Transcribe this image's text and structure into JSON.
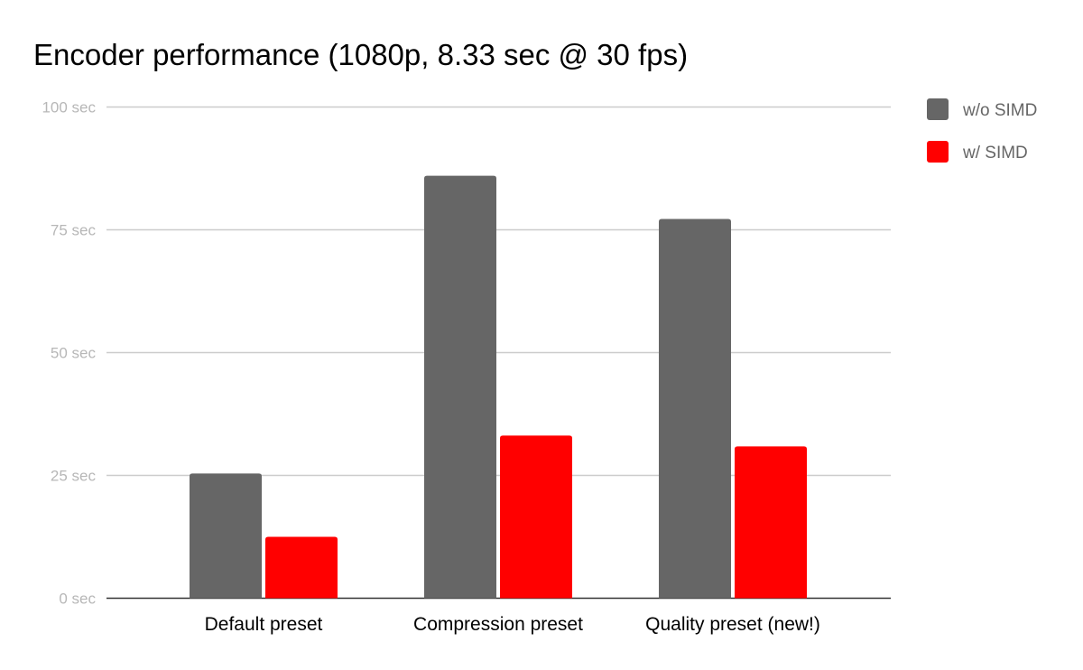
{
  "chart_data": {
    "type": "bar",
    "title": "Encoder performance (1080p, 8.33 sec @ 30 fps)",
    "xlabel": "",
    "ylabel": "",
    "categories": [
      "Default preset",
      "Compression preset",
      "Quality preset (new!)"
    ],
    "series": [
      {
        "name": "w/o SIMD",
        "color": "#666666",
        "values": [
          25.4,
          86.0,
          77.2
        ]
      },
      {
        "name": "w/ SIMD",
        "color": "#ff0000",
        "values": [
          12.5,
          33.1,
          30.9
        ]
      }
    ],
    "ylim": [
      0,
      100
    ],
    "yticks": [
      0,
      25,
      50,
      75,
      100
    ],
    "ytick_labels": [
      "0 sec",
      "25 sec",
      "50 sec",
      "75 sec",
      "100 sec"
    ],
    "grid": true,
    "legend": "right"
  }
}
